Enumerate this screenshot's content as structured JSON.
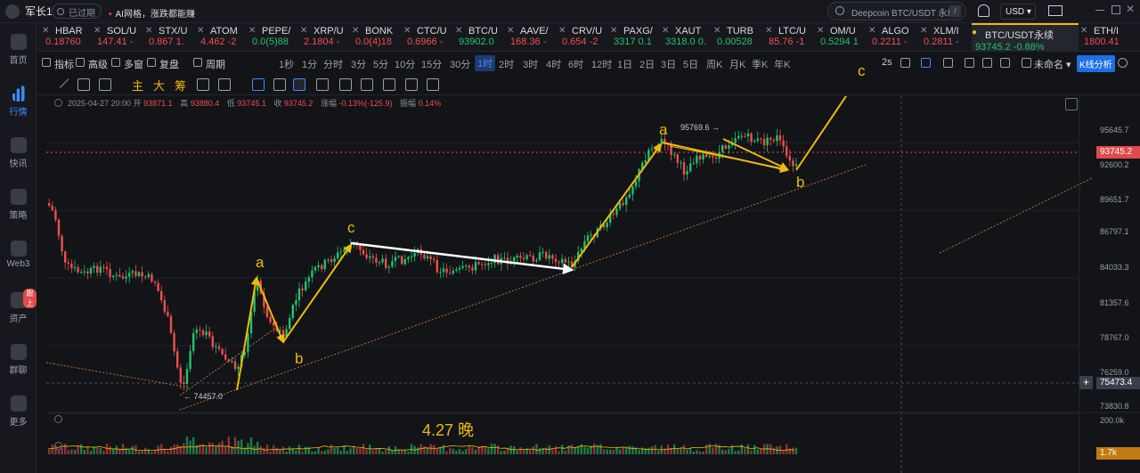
{
  "topbar": {
    "brand": "军长1",
    "expired": "已过期",
    "promo_bullet": "•",
    "promo_text": "AI网格，涨跌都能赚",
    "search_placeholder": "Deepcoin BTC/USDT 永续",
    "search_shortcut": "/",
    "currency": "USD ▾"
  },
  "sidebar": [
    {
      "label": "首页",
      "icon": "home-icon"
    },
    {
      "label": "行情",
      "icon": "market-chart-icon",
      "active": true
    },
    {
      "label": "快讯",
      "icon": "news-icon"
    },
    {
      "label": "策略",
      "icon": "robot-icon"
    },
    {
      "label": "Web3",
      "icon": "web3-icon"
    },
    {
      "label": "资产",
      "icon": "wallet-icon",
      "badge": "跟上"
    },
    {
      "label": "群聊",
      "icon": "chat-icon"
    },
    {
      "label": "更多",
      "icon": "grid-icon"
    }
  ],
  "tickers": [
    {
      "symbol": "HBAR",
      "value": "0.18760",
      "dir": "dn"
    },
    {
      "symbol": "SOL/U",
      "value": "147.41  -",
      "dir": "dn"
    },
    {
      "symbol": "STX/U",
      "value": "0.867  1.",
      "dir": "dn"
    },
    {
      "symbol": "ATOM",
      "value": "4.462  -2",
      "dir": "dn"
    },
    {
      "symbol": "PEPE/",
      "value": "0.0(5)88",
      "dir": "up"
    },
    {
      "symbol": "XRP/U",
      "value": "2.1804  -",
      "dir": "dn"
    },
    {
      "symbol": "BONK",
      "value": "0.0(4)18",
      "dir": "dn"
    },
    {
      "symbol": "CTC/U",
      "value": "0.6966  -",
      "dir": "dn"
    },
    {
      "symbol": "BTC/U",
      "value": "93902.0",
      "dir": "up"
    },
    {
      "symbol": "AAVE/",
      "value": "168.36  -",
      "dir": "dn"
    },
    {
      "symbol": "CRV/U",
      "value": "0.654  -2",
      "dir": "dn"
    },
    {
      "symbol": "PAXG/",
      "value": "3317  0.1",
      "dir": "up"
    },
    {
      "symbol": "XAUT",
      "value": "3318.0  0.",
      "dir": "up"
    },
    {
      "symbol": "TURB",
      "value": "0.00528",
      "dir": "up"
    },
    {
      "symbol": "LTC/U",
      "value": "85.76  -1",
      "dir": "dn"
    },
    {
      "symbol": "OM/U",
      "value": "0.5294  1",
      "dir": "up"
    },
    {
      "symbol": "ALGO",
      "value": "0.2211  -",
      "dir": "dn"
    },
    {
      "symbol": "XLM/I",
      "value": "0.2811  -",
      "dir": "dn"
    },
    {
      "symbol": "BTC/USDT永续",
      "value": "93745.2  -0.88%",
      "dir": "up",
      "active": true
    },
    {
      "symbol": "ETH/I",
      "value": "1800.41",
      "dir": "dn"
    }
  ],
  "toolbar1": {
    "items": [
      "指标",
      "高级",
      "多窗",
      "复盘",
      "周期",
      "1秒",
      "1分",
      "分时",
      "3分",
      "5分",
      "10分",
      "15分",
      "30分",
      "1时",
      "2时",
      "3时",
      "4时",
      "6时",
      "12时",
      "1日",
      "2日",
      "3日",
      "5日",
      "周K",
      "月K",
      "季K",
      "年K"
    ],
    "selected": "1时",
    "refresh": "2s",
    "layout_name": "未命名 ▾",
    "kline_button": "K线分析"
  },
  "toolbar2": {
    "text_tools": [
      "主",
      "大",
      "筹"
    ]
  },
  "info_row": {
    "date": "2025-04-27 20:00",
    "open_label": "开",
    "open": "93871.1",
    "high_label": "高",
    "high": "93880.4",
    "low_label": "低",
    "low": "93745.1",
    "close_label": "收",
    "close": "93745.2",
    "change_label": "涨幅",
    "change": "-0.13%(-125.9)",
    "amplitude_label": "振幅",
    "amplitude": "0.14%"
  },
  "price_axis": [
    "95645.7",
    "92600.2",
    "89651.7",
    "86797.1",
    "84033.3",
    "81357.6",
    "78767.0",
    "76259.0",
    "73830.8"
  ],
  "last_price": "93745.2",
  "cross_price": "75473.4",
  "volume_axis": "200.0k",
  "volume_tag": "1.7k",
  "annotations": {
    "low_price": "← 74457.0",
    "high_price": "95769.6 →",
    "date_note": "4.27 晚"
  },
  "wave_labels": [
    "a",
    "b",
    "c",
    "a",
    "b",
    "c"
  ],
  "colors": {
    "up": "#23c26b",
    "down": "#f04e4e",
    "wave": "#f0b90b",
    "accent": "#3d8bff"
  }
}
